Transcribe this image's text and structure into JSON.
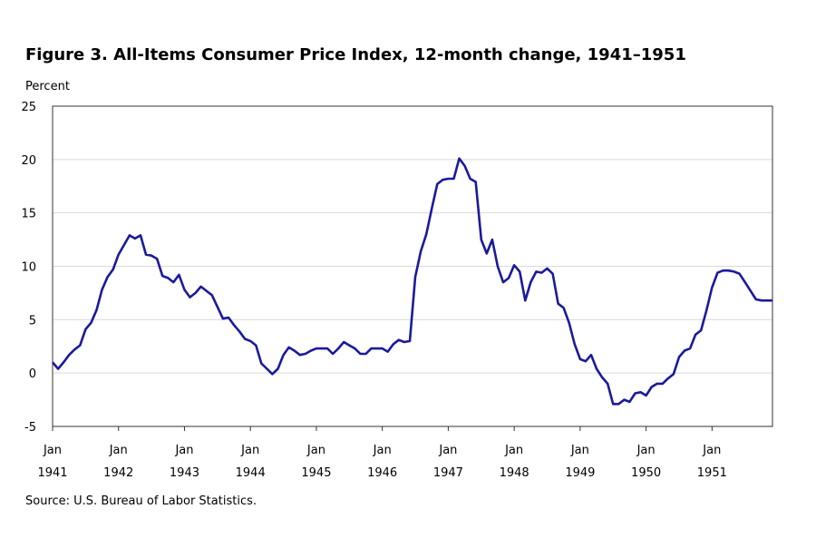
{
  "chart_data": {
    "type": "line",
    "title": "Figure 3. All-Items Consumer Price Index, 12-month change, 1941–1951",
    "ylabel": "Percent",
    "xlabel": "",
    "source": "Source:  U.S. Bureau  of Labor Statistics.",
    "ylim": [
      -5,
      25
    ],
    "yticks": [
      "25",
      "20",
      "15",
      "10",
      "5",
      "0",
      "-5"
    ],
    "ytick_values": [
      25,
      20,
      15,
      10,
      5,
      0,
      -5
    ],
    "xticks": [
      {
        "month": "Jan",
        "year": "1941"
      },
      {
        "month": "Jan",
        "year": "1942"
      },
      {
        "month": "Jan",
        "year": "1943"
      },
      {
        "month": "Jan",
        "year": "1944"
      },
      {
        "month": "Jan",
        "year": "1945"
      },
      {
        "month": "Jan",
        "year": "1946"
      },
      {
        "month": "Jan",
        "year": "1947"
      },
      {
        "month": "Jan",
        "year": "1948"
      },
      {
        "month": "Jan",
        "year": "1949"
      },
      {
        "month": "Jan",
        "year": "1950"
      },
      {
        "month": "Jan",
        "year": "1951"
      }
    ],
    "x_start": "1941-01",
    "x_end": "1951-12",
    "frequency": "monthly",
    "grid": "horizontal",
    "line_color": "#1a1a9c",
    "values": [
      1.0,
      0.4,
      1.0,
      1.7,
      2.2,
      2.6,
      4.1,
      4.7,
      5.9,
      7.8,
      9.0,
      9.7,
      11.1,
      12.0,
      12.9,
      12.6,
      12.9,
      11.1,
      11.0,
      10.7,
      9.1,
      8.9,
      8.5,
      9.2,
      7.8,
      7.1,
      7.5,
      8.1,
      7.7,
      7.3,
      6.2,
      5.1,
      5.2,
      4.5,
      3.9,
      3.2,
      3.0,
      2.6,
      0.9,
      0.4,
      -0.1,
      0.4,
      1.7,
      2.4,
      2.1,
      1.7,
      1.8,
      2.1,
      2.3,
      2.3,
      2.3,
      1.8,
      2.3,
      2.9,
      2.6,
      2.3,
      1.8,
      1.8,
      2.3,
      2.3,
      2.3,
      2.0,
      2.7,
      3.1,
      2.9,
      3.0,
      9.0,
      11.4,
      13.0,
      15.4,
      17.7,
      18.1,
      18.2,
      18.2,
      20.1,
      19.4,
      18.2,
      17.9,
      12.5,
      11.2,
      12.5,
      10.0,
      8.5,
      8.9,
      10.1,
      9.5,
      6.8,
      8.5,
      9.5,
      9.4,
      9.8,
      9.3,
      6.5,
      6.1,
      4.7,
      2.7,
      1.3,
      1.1,
      1.7,
      0.4,
      -0.4,
      -1.0,
      -2.9,
      -2.9,
      -2.5,
      -2.7,
      -1.9,
      -1.8,
      -2.1,
      -1.3,
      -1.0,
      -1.0,
      -0.5,
      -0.1,
      1.5,
      2.1,
      2.3,
      3.6,
      4.0,
      5.9,
      8.0,
      9.4,
      9.6,
      9.6,
      9.5,
      9.3,
      8.5,
      7.7,
      6.9,
      6.8,
      6.8,
      6.8
    ]
  }
}
